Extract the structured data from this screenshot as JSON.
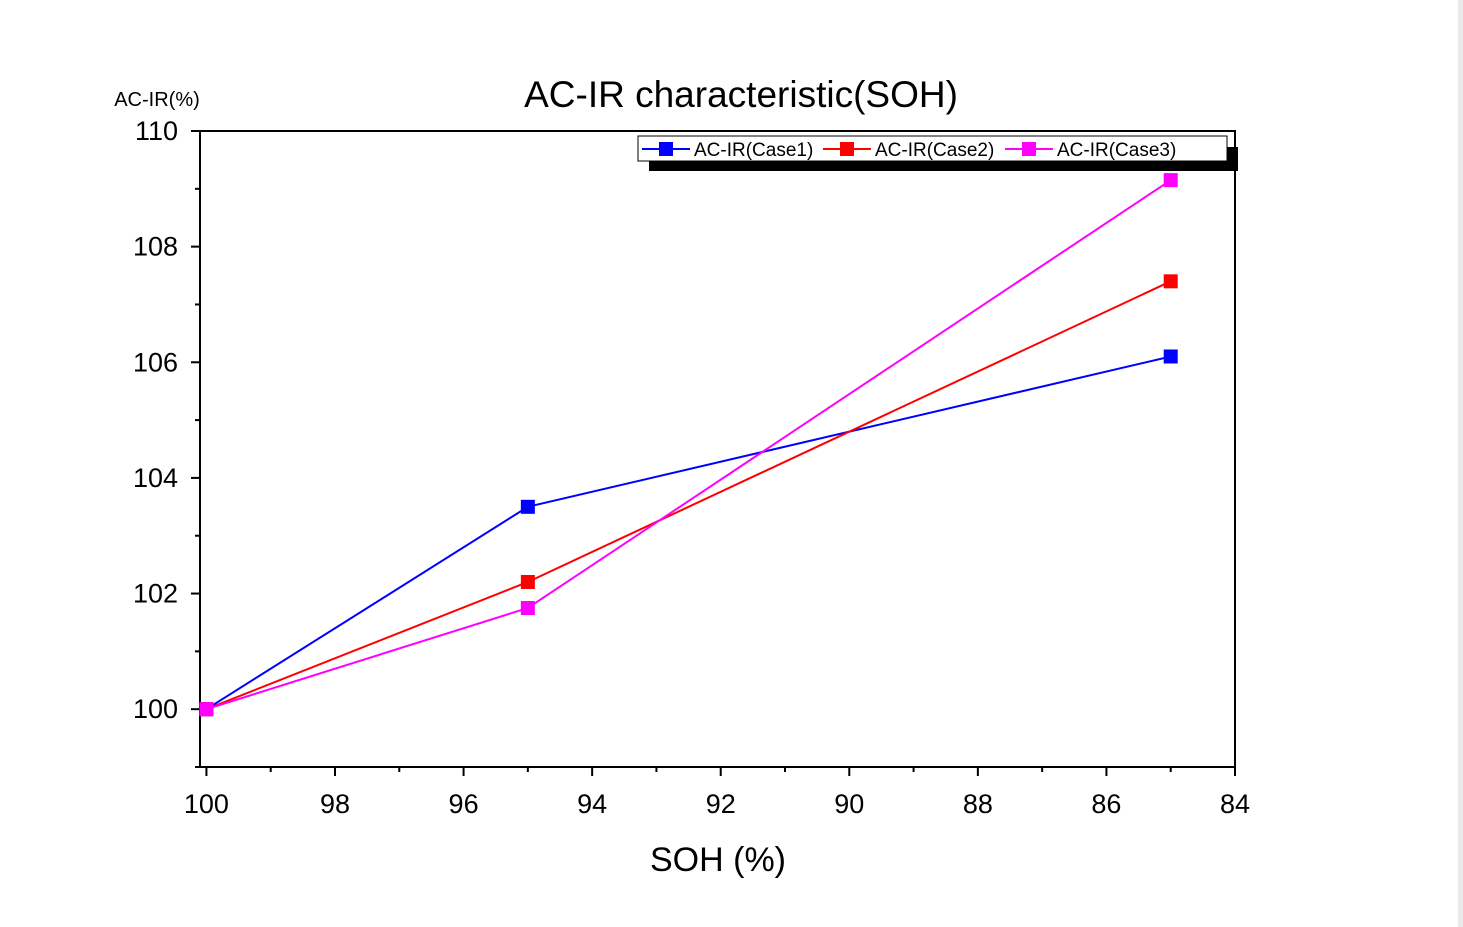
{
  "chart_data": {
    "type": "line",
    "title": "AC-IR characteristic(SOH)",
    "xlabel": "SOH (%)",
    "ylabel": "AC-IR(%)",
    "x": [
      100,
      95,
      85
    ],
    "xlim": [
      100,
      84
    ],
    "ylim": [
      99,
      110
    ],
    "x_reversed": true,
    "xticks": [
      "100",
      "98",
      "96",
      "94",
      "92",
      "90",
      "88",
      "86",
      "84"
    ],
    "yticks": [
      "100",
      "102",
      "104",
      "106",
      "108",
      "110"
    ],
    "grid": false,
    "legend_position": "top-right",
    "series": [
      {
        "name": "AC-IR(Case1)",
        "color": "#0000ff",
        "marker": "square",
        "values": [
          100.0,
          103.5,
          106.1
        ]
      },
      {
        "name": "AC-IR(Case2)",
        "color": "#ff0000",
        "marker": "square",
        "values": [
          100.0,
          102.2,
          107.4
        ]
      },
      {
        "name": "AC-IR(Case3)",
        "color": "#ff00ff",
        "marker": "square",
        "values": [
          100.0,
          101.75,
          109.15
        ]
      }
    ]
  }
}
